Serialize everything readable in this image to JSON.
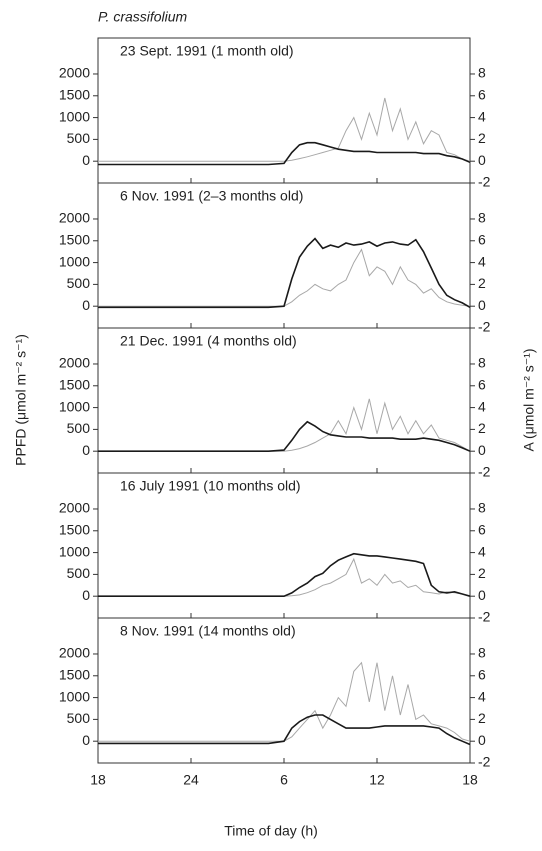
{
  "title": "P. crassifolium",
  "xlabel": "Time of day (h)",
  "ylabel": "PPFD (μmol m⁻² s⁻¹)",
  "y2label": "A (μmol m⁻² s⁻¹)",
  "xlim": [
    18,
    42
  ],
  "xticks": [
    18,
    24,
    {
      "value": 30,
      "label": "6"
    },
    {
      "value": 36,
      "label": "12"
    },
    {
      "value": 42,
      "label": "18"
    }
  ],
  "chart_data": [
    {
      "type": "line",
      "title": "23 Sept. 1991 (1 month old)",
      "ylim": [
        -500,
        2825
      ],
      "yticks": [
        0,
        500,
        1000,
        1500,
        2000
      ],
      "y2lim": [
        -2,
        11.3
      ],
      "y2ticks": [
        -2,
        0,
        2,
        4,
        6,
        8
      ],
      "x": [
        18,
        24,
        29,
        30,
        30.5,
        31,
        31.5,
        32,
        32.5,
        33,
        33.5,
        34,
        34.5,
        35,
        35.5,
        36,
        36.5,
        37,
        37.5,
        38,
        38.5,
        39,
        39.5,
        40,
        40.5,
        41,
        41.5,
        42
      ],
      "series": [
        {
          "color": "#a8a8a8",
          "values": [
            0,
            0,
            0,
            0,
            20,
            60,
            100,
            150,
            200,
            250,
            300,
            700,
            1000,
            500,
            1100,
            600,
            1450,
            700,
            1200,
            500,
            900,
            400,
            700,
            600,
            200,
            150,
            50,
            0
          ]
        },
        {
          "color": "#1a1a1a",
          "axis": "y2",
          "values": [
            -0.3,
            -0.3,
            -0.3,
            -0.2,
            0.8,
            1.5,
            1.7,
            1.7,
            1.5,
            1.3,
            1.1,
            1.0,
            0.9,
            0.9,
            0.9,
            0.8,
            0.8,
            0.8,
            0.8,
            0.8,
            0.8,
            0.7,
            0.7,
            0.7,
            0.5,
            0.4,
            0.2,
            -0.1
          ]
        }
      ]
    },
    {
      "type": "line",
      "title": "6 Nov. 1991 (2–3 months old)",
      "ylim": [
        -500,
        2825
      ],
      "yticks": [
        0,
        500,
        1000,
        1500,
        2000
      ],
      "y2lim": [
        -2,
        11.3
      ],
      "y2ticks": [
        -2,
        0,
        2,
        4,
        6,
        8
      ],
      "x": [
        18,
        24,
        29,
        30,
        30.5,
        31,
        31.5,
        32,
        32.5,
        33,
        33.5,
        34,
        34.5,
        35,
        35.5,
        36,
        36.5,
        37,
        37.5,
        38,
        38.5,
        39,
        39.5,
        40,
        40.5,
        41,
        41.5,
        42
      ],
      "series": [
        {
          "color": "#a8a8a8",
          "values": [
            0,
            0,
            0,
            0,
            100,
            250,
            350,
            500,
            400,
            350,
            500,
            600,
            1000,
            1300,
            700,
            900,
            800,
            500,
            900,
            600,
            500,
            300,
            400,
            200,
            100,
            50,
            20,
            0
          ]
        },
        {
          "color": "#1a1a1a",
          "axis": "y2",
          "values": [
            -0.1,
            -0.1,
            -0.1,
            0,
            2.5,
            4.5,
            5.5,
            6.2,
            5.3,
            5.6,
            5.4,
            5.8,
            5.6,
            5.7,
            5.9,
            5.5,
            5.8,
            5.9,
            5.7,
            5.6,
            6.1,
            5.0,
            3.5,
            2.0,
            1.0,
            0.6,
            0.3,
            -0.1
          ]
        }
      ]
    },
    {
      "type": "line",
      "title": "21 Dec. 1991 (4 months old)",
      "ylim": [
        -500,
        2825
      ],
      "yticks": [
        0,
        500,
        1000,
        1500,
        2000
      ],
      "y2lim": [
        -2,
        11.3
      ],
      "y2ticks": [
        -2,
        0,
        2,
        4,
        6,
        8
      ],
      "x": [
        18,
        24,
        29,
        30,
        30.5,
        31,
        31.5,
        32,
        32.5,
        33,
        33.5,
        34,
        34.5,
        35,
        35.5,
        36,
        36.5,
        37,
        37.5,
        38,
        38.5,
        39,
        39.5,
        40,
        40.5,
        41,
        41.5,
        42
      ],
      "series": [
        {
          "color": "#a8a8a8",
          "values": [
            0,
            0,
            0,
            0,
            20,
            60,
            120,
            200,
            300,
            400,
            700,
            400,
            1000,
            500,
            1200,
            400,
            1100,
            500,
            800,
            400,
            700,
            400,
            600,
            300,
            250,
            200,
            100,
            0
          ]
        },
        {
          "color": "#1a1a1a",
          "axis": "y2",
          "values": [
            0,
            0,
            0,
            0.1,
            1.0,
            2.0,
            2.7,
            2.3,
            1.8,
            1.5,
            1.4,
            1.3,
            1.3,
            1.3,
            1.2,
            1.2,
            1.2,
            1.2,
            1.1,
            1.1,
            1.1,
            1.2,
            1.1,
            1.0,
            0.8,
            0.6,
            0.3,
            0
          ]
        }
      ]
    },
    {
      "type": "line",
      "title": "16 July 1991 (10 months old)",
      "ylim": [
        -500,
        2825
      ],
      "yticks": [
        0,
        500,
        1000,
        1500,
        2000
      ],
      "y2lim": [
        -2,
        11.3
      ],
      "y2ticks": [
        -2,
        0,
        2,
        4,
        6,
        8
      ],
      "x": [
        18,
        24,
        29,
        30,
        30.5,
        31,
        31.5,
        32,
        32.5,
        33,
        33.5,
        34,
        34.5,
        35,
        35.5,
        36,
        36.5,
        37,
        37.5,
        38,
        38.5,
        39,
        39.5,
        40,
        40.5,
        41,
        41.5,
        42
      ],
      "series": [
        {
          "color": "#a8a8a8",
          "values": [
            0,
            0,
            0,
            0,
            10,
            30,
            80,
            150,
            250,
            300,
            400,
            500,
            850,
            300,
            400,
            250,
            500,
            300,
            350,
            200,
            250,
            100,
            80,
            50,
            100,
            80,
            50,
            0
          ]
        },
        {
          "color": "#1a1a1a",
          "axis": "y2",
          "values": [
            0,
            0,
            0,
            0,
            0.3,
            0.8,
            1.2,
            1.8,
            2.1,
            2.8,
            3.3,
            3.6,
            3.9,
            3.8,
            3.7,
            3.7,
            3.6,
            3.5,
            3.4,
            3.3,
            3.2,
            3.0,
            1.0,
            0.4,
            0.3,
            0.4,
            0.2,
            0
          ]
        }
      ]
    },
    {
      "type": "line",
      "title": "8 Nov. 1991 (14 months old)",
      "ylim": [
        -500,
        2825
      ],
      "yticks": [
        0,
        500,
        1000,
        1500,
        2000
      ],
      "y2lim": [
        -2,
        11.3
      ],
      "y2ticks": [
        -2,
        0,
        2,
        4,
        6,
        8
      ],
      "x": [
        18,
        24,
        29,
        30,
        30.5,
        31,
        31.5,
        32,
        32.5,
        33,
        33.5,
        34,
        34.5,
        35,
        35.5,
        36,
        36.5,
        37,
        37.5,
        38,
        38.5,
        39,
        39.5,
        40,
        40.5,
        41,
        41.5,
        42
      ],
      "series": [
        {
          "color": "#a8a8a8",
          "values": [
            0,
            0,
            0,
            0,
            100,
            300,
            500,
            700,
            300,
            600,
            1000,
            800,
            1600,
            1800,
            900,
            1800,
            700,
            1500,
            600,
            1300,
            500,
            600,
            400,
            350,
            300,
            200,
            50,
            0
          ]
        },
        {
          "color": "#1a1a1a",
          "axis": "y2",
          "values": [
            -0.2,
            -0.2,
            -0.2,
            0,
            1.2,
            1.8,
            2.2,
            2.4,
            2.4,
            2.0,
            1.6,
            1.2,
            1.2,
            1.2,
            1.2,
            1.3,
            1.4,
            1.4,
            1.4,
            1.4,
            1.4,
            1.4,
            1.3,
            1.2,
            0.7,
            0.3,
            0,
            -0.3
          ]
        }
      ]
    }
  ]
}
